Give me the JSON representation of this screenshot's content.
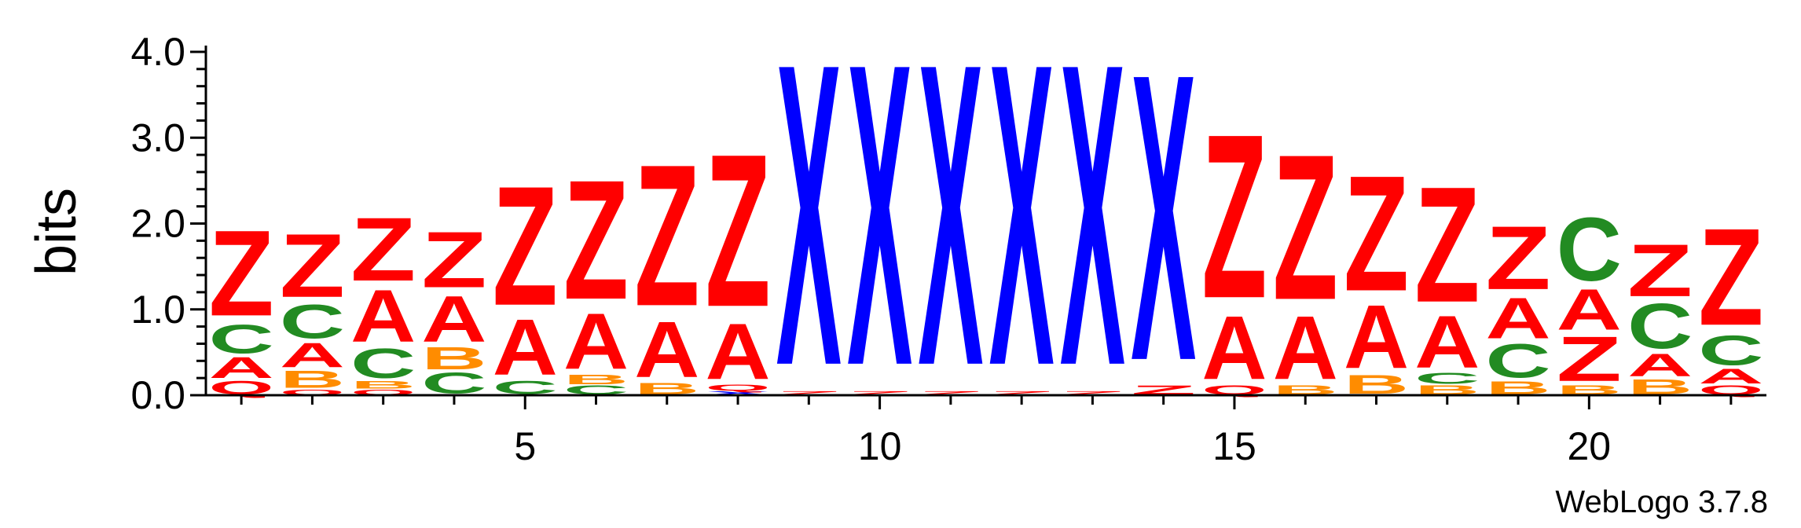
{
  "chart_data": {
    "type": "sequence-logo",
    "ylabel": "bits",
    "ylim": [
      0,
      4.0
    ],
    "yticks": [
      "0.0",
      "1.0",
      "2.0",
      "3.0",
      "4.0"
    ],
    "ytick_values": [
      0,
      1,
      2,
      3,
      4
    ],
    "xticks": [
      5,
      10,
      15,
      20
    ],
    "xlim": [
      0.5,
      22.5
    ],
    "footer": "WebLogo 3.7.8",
    "colors": {
      "Z": "#ff0000",
      "A": "#ff0000",
      "Q": "#ff0000",
      "C": "#228b22",
      "B": "#ff8c00",
      "X": "#0000ff"
    },
    "positions": [
      {
        "pos": 1,
        "stack": [
          [
            "Q",
            0.18
          ],
          [
            "A",
            0.28
          ],
          [
            "C",
            0.38
          ],
          [
            "Z",
            1.15
          ]
        ]
      },
      {
        "pos": 2,
        "stack": [
          [
            "Q",
            0.07
          ],
          [
            "B",
            0.23
          ],
          [
            "A",
            0.33
          ],
          [
            "C",
            0.45
          ],
          [
            "Z",
            0.85
          ]
        ]
      },
      {
        "pos": 3,
        "stack": [
          [
            "Q",
            0.07
          ],
          [
            "B",
            0.1
          ],
          [
            "C",
            0.4
          ],
          [
            "A",
            0.7
          ],
          [
            "Z",
            0.85
          ]
        ]
      },
      {
        "pos": 4,
        "stack": [
          [
            "C",
            0.28
          ],
          [
            "B",
            0.3
          ],
          [
            "A",
            0.62
          ],
          [
            "Z",
            0.75
          ]
        ]
      },
      {
        "pos": 5,
        "stack": [
          [
            "C",
            0.18
          ],
          [
            "A",
            0.75
          ],
          [
            "Z",
            1.6
          ]
        ]
      },
      {
        "pos": 6,
        "stack": [
          [
            "C",
            0.12
          ],
          [
            "B",
            0.13
          ],
          [
            "A",
            0.75
          ],
          [
            "Z",
            1.6
          ]
        ]
      },
      {
        "pos": 7,
        "stack": [
          [
            "B",
            0.15
          ],
          [
            "A",
            0.75
          ],
          [
            "Z",
            1.9
          ]
        ]
      },
      {
        "pos": 8,
        "stack": [
          [
            "X",
            0.05
          ],
          [
            "Q",
            0.08
          ],
          [
            "A",
            0.75
          ],
          [
            "Z",
            2.05
          ]
        ]
      },
      {
        "pos": 9,
        "stack": [
          [
            "Z",
            0.05
          ],
          [
            "X",
            4.05
          ]
        ]
      },
      {
        "pos": 10,
        "stack": [
          [
            "Z",
            0.05
          ],
          [
            "X",
            4.05
          ]
        ]
      },
      {
        "pos": 11,
        "stack": [
          [
            "Z",
            0.05
          ],
          [
            "X",
            4.05
          ]
        ]
      },
      {
        "pos": 12,
        "stack": [
          [
            "Z",
            0.05
          ],
          [
            "X",
            4.05
          ]
        ]
      },
      {
        "pos": 13,
        "stack": [
          [
            "Z",
            0.05
          ],
          [
            "X",
            4.05
          ]
        ]
      },
      {
        "pos": 14,
        "stack": [
          [
            "Z",
            0.12
          ],
          [
            "X",
            3.85
          ]
        ]
      },
      {
        "pos": 15,
        "stack": [
          [
            "Q",
            0.12
          ],
          [
            "A",
            0.85
          ],
          [
            "Z",
            2.2
          ]
        ]
      },
      {
        "pos": 16,
        "stack": [
          [
            "B",
            0.12
          ],
          [
            "A",
            0.85
          ],
          [
            "Z",
            1.95
          ]
        ]
      },
      {
        "pos": 17,
        "stack": [
          [
            "B",
            0.25
          ],
          [
            "A",
            0.85
          ],
          [
            "Z",
            1.55
          ]
        ]
      },
      {
        "pos": 18,
        "stack": [
          [
            "B",
            0.12
          ],
          [
            "C",
            0.15
          ],
          [
            "A",
            0.7
          ],
          [
            "Z",
            1.55
          ]
        ]
      },
      {
        "pos": 19,
        "stack": [
          [
            "B",
            0.17
          ],
          [
            "C",
            0.45
          ],
          [
            "A",
            0.55
          ],
          [
            "Z",
            0.85
          ]
        ]
      },
      {
        "pos": 20,
        "stack": [
          [
            "B",
            0.12
          ],
          [
            "Z",
            0.6
          ],
          [
            "A",
            0.55
          ],
          [
            "C",
            0.85
          ]
        ]
      },
      {
        "pos": 21,
        "stack": [
          [
            "B",
            0.2
          ],
          [
            "A",
            0.3
          ],
          [
            "C",
            0.6
          ],
          [
            "Z",
            0.7
          ]
        ]
      },
      {
        "pos": 22,
        "stack": [
          [
            "Q",
            0.12
          ],
          [
            "A",
            0.2
          ],
          [
            "C",
            0.4
          ],
          [
            "Z",
            1.3
          ]
        ]
      }
    ]
  }
}
